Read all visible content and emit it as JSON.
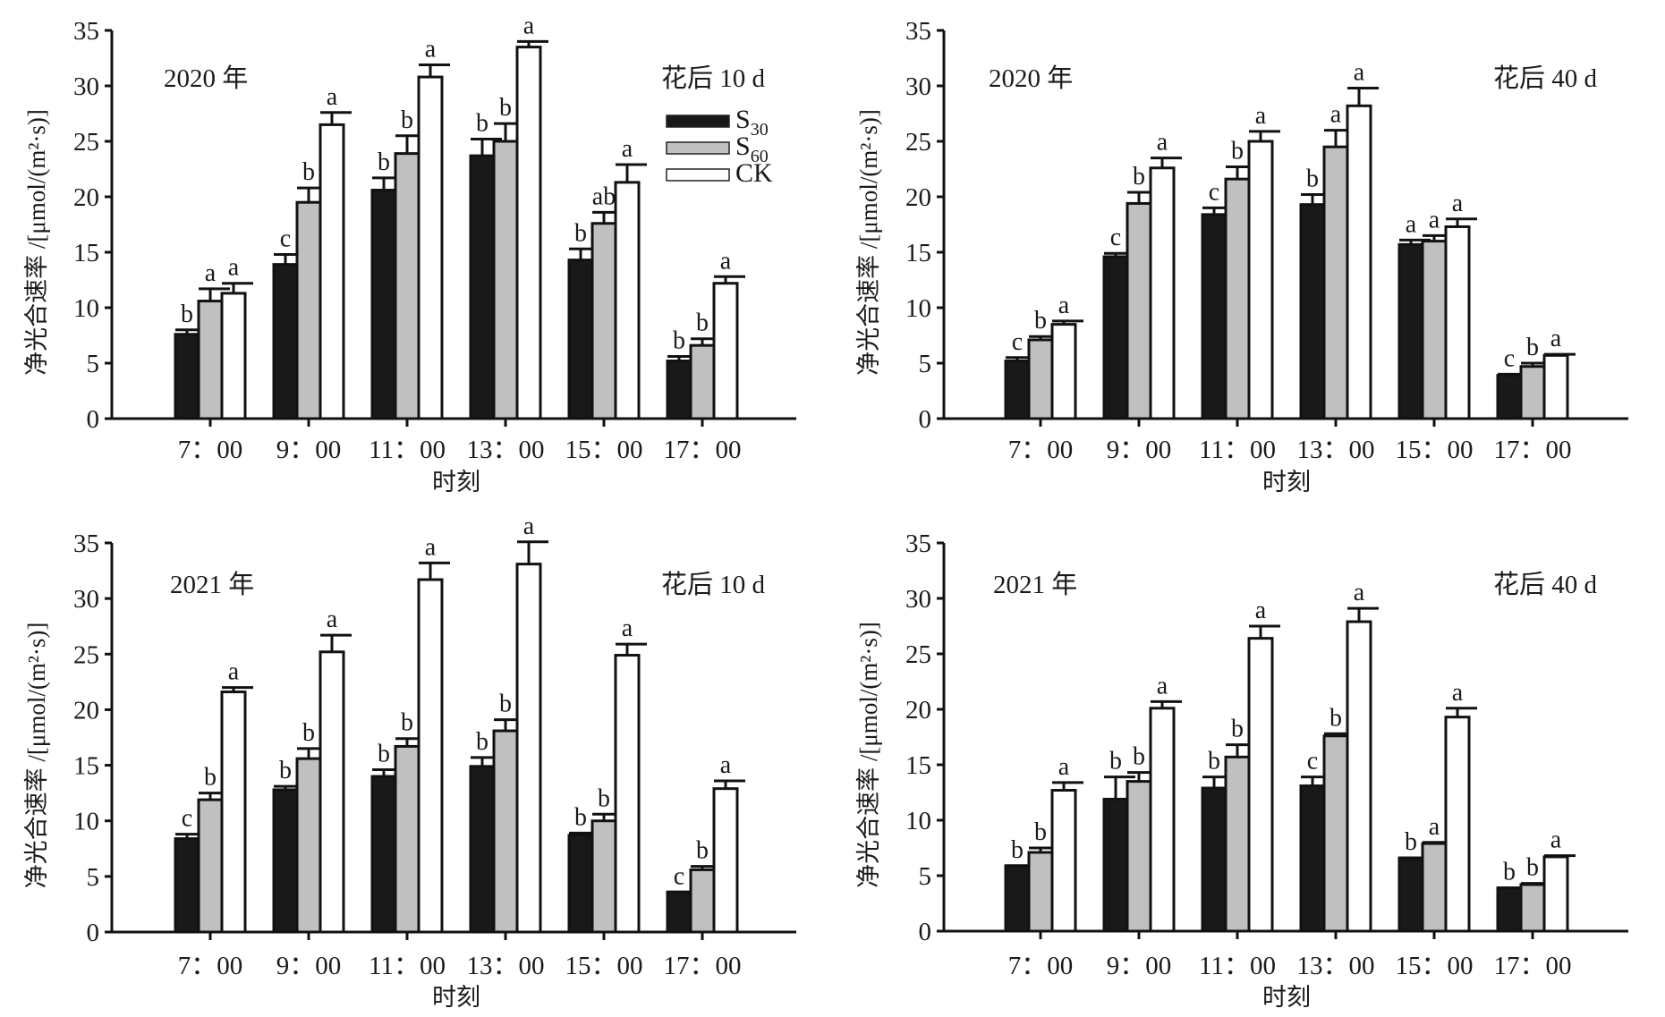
{
  "figure": {
    "legend": {
      "entries": [
        {
          "name": "S",
          "sub": "30",
          "key": "S30",
          "color": "#191919"
        },
        {
          "name": "S",
          "sub": "60",
          "key": "S60",
          "color": "#c0c0c0"
        },
        {
          "name": "CK",
          "sub": "",
          "key": "CK",
          "color": "#ffffff"
        }
      ]
    }
  },
  "chart_data": [
    {
      "type": "bar",
      "title": "",
      "year_label": "2020 年",
      "stage_label": "花后 10 d",
      "xlabel": "时刻",
      "ylabel": "净光合速率 /[μmol/(m²·s)]",
      "ylim": [
        0,
        35
      ],
      "yticks": [
        0,
        5,
        10,
        15,
        20,
        25,
        30,
        35
      ],
      "grid": false,
      "legend": "top-right",
      "categories": [
        "7：00",
        "9：00",
        "11：00",
        "13：00",
        "15：00",
        "17：00"
      ],
      "series": [
        {
          "name": "S30",
          "values": [
            7.6,
            13.9,
            20.6,
            23.7,
            14.3,
            5.2
          ],
          "errors": [
            0.4,
            0.9,
            1.1,
            1.5,
            1.0,
            0.4
          ],
          "letters": [
            "b",
            "c",
            "b",
            "b",
            "b",
            "b"
          ]
        },
        {
          "name": "S60",
          "values": [
            10.6,
            19.5,
            23.9,
            25.0,
            17.6,
            6.6
          ],
          "errors": [
            1.1,
            1.3,
            1.6,
            1.6,
            1.0,
            0.6
          ],
          "letters": [
            "a",
            "b",
            "b",
            "b",
            "ab",
            "b"
          ]
        },
        {
          "name": "CK",
          "values": [
            11.3,
            26.5,
            30.8,
            33.5,
            21.3,
            12.2
          ],
          "errors": [
            0.9,
            1.1,
            1.1,
            0.5,
            1.6,
            0.6
          ],
          "letters": [
            "a",
            "a",
            "a",
            "a",
            "a",
            "a"
          ]
        }
      ]
    },
    {
      "type": "bar",
      "title": "",
      "year_label": "2020 年",
      "stage_label": "花后 40 d",
      "xlabel": "时刻",
      "ylabel": "净光合速率 /[μmol/(m²·s)]",
      "ylim": [
        0,
        35
      ],
      "yticks": [
        0,
        5,
        10,
        15,
        20,
        25,
        30,
        35
      ],
      "grid": false,
      "legend": "none",
      "categories": [
        "7：00",
        "9：00",
        "11：00",
        "13：00",
        "15：00",
        "17：00"
      ],
      "series": [
        {
          "name": "S30",
          "values": [
            5.2,
            14.6,
            18.4,
            19.3,
            15.7,
            3.9
          ],
          "errors": [
            0.3,
            0.3,
            0.6,
            0.9,
            0.4,
            0.1
          ],
          "letters": [
            "c",
            "c",
            "c",
            "b",
            "a",
            "c"
          ]
        },
        {
          "name": "S60",
          "values": [
            7.1,
            19.4,
            21.6,
            24.5,
            16.0,
            4.7
          ],
          "errors": [
            0.3,
            1.0,
            1.1,
            1.5,
            0.5,
            0.3
          ],
          "letters": [
            "b",
            "b",
            "b",
            "a",
            "a",
            "b"
          ]
        },
        {
          "name": "CK",
          "values": [
            8.5,
            22.6,
            25.0,
            28.2,
            17.3,
            5.7
          ],
          "errors": [
            0.3,
            0.9,
            0.9,
            1.6,
            0.7,
            0.1
          ],
          "letters": [
            "a",
            "a",
            "a",
            "a",
            "a",
            "a"
          ]
        }
      ]
    },
    {
      "type": "bar",
      "title": "",
      "year_label": "2021 年",
      "stage_label": "花后 10 d",
      "xlabel": "时刻",
      "ylabel": "净光合速率 /[μmol/(m²·s)]",
      "ylim": [
        0,
        35
      ],
      "yticks": [
        0,
        5,
        10,
        15,
        20,
        25,
        30,
        35
      ],
      "grid": false,
      "legend": "none",
      "categories": [
        "7：00",
        "9：00",
        "11：00",
        "13：00",
        "15：00",
        "17：00"
      ],
      "series": [
        {
          "name": "S30",
          "values": [
            8.4,
            12.8,
            14.0,
            14.9,
            8.7,
            3.6
          ],
          "errors": [
            0.4,
            0.3,
            0.6,
            0.8,
            0.2,
            0.0
          ],
          "letters": [
            "c",
            "b",
            "b",
            "b",
            "b",
            "c"
          ]
        },
        {
          "name": "S60",
          "values": [
            11.9,
            15.6,
            16.7,
            18.1,
            10.0,
            5.6
          ],
          "errors": [
            0.6,
            0.9,
            0.7,
            1.0,
            0.6,
            0.3
          ],
          "letters": [
            "b",
            "b",
            "b",
            "b",
            "b",
            "b"
          ]
        },
        {
          "name": "CK",
          "values": [
            21.6,
            25.2,
            31.7,
            33.1,
            24.9,
            12.9
          ],
          "errors": [
            0.4,
            1.5,
            1.5,
            2.0,
            1.0,
            0.7
          ],
          "letters": [
            "a",
            "a",
            "a",
            "a",
            "a",
            "a"
          ]
        }
      ]
    },
    {
      "type": "bar",
      "title": "",
      "year_label": "2021 年",
      "stage_label": "花后 40 d",
      "xlabel": "时刻",
      "ylabel": "净光合速率 /[μmol/(m²·s)]",
      "ylim": [
        0,
        35
      ],
      "yticks": [
        0,
        5,
        10,
        15,
        20,
        25,
        30,
        35
      ],
      "grid": false,
      "legend": "none",
      "categories": [
        "7：00",
        "9：00",
        "11：00",
        "13：00",
        "15：00",
        "17：00"
      ],
      "series": [
        {
          "name": "S30",
          "values": [
            5.9,
            11.9,
            12.9,
            13.1,
            6.6,
            3.9
          ],
          "errors": [
            0.0,
            2.0,
            1.0,
            0.8,
            0.0,
            0.0
          ],
          "letters": [
            "b",
            "b",
            "b",
            "c",
            "b",
            "b"
          ]
        },
        {
          "name": "S60",
          "values": [
            7.1,
            13.5,
            15.7,
            17.6,
            7.9,
            4.2
          ],
          "errors": [
            0.4,
            0.8,
            1.1,
            0.2,
            0.1,
            0.1
          ],
          "letters": [
            "b",
            "b",
            "b",
            "b",
            "a",
            "b"
          ]
        },
        {
          "name": "CK",
          "values": [
            12.7,
            20.1,
            26.4,
            27.9,
            19.3,
            6.7
          ],
          "errors": [
            0.7,
            0.6,
            1.1,
            1.2,
            0.8,
            0.1
          ],
          "letters": [
            "a",
            "a",
            "a",
            "a",
            "a",
            "a"
          ]
        }
      ]
    }
  ]
}
